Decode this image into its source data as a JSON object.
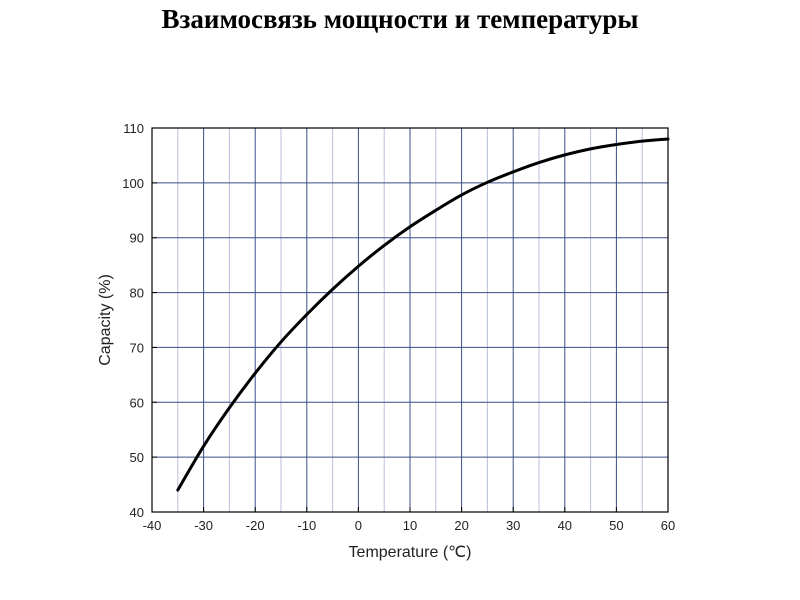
{
  "page": {
    "title": "Взаимосвязь мощности и температуры"
  },
  "chart_data": {
    "type": "line",
    "title": "Взаимосвязь мощности и температуры",
    "xlabel": "Temperature (℃)",
    "ylabel": "Capacity (%)",
    "xlim": [
      -40,
      60
    ],
    "ylim": [
      40,
      110
    ],
    "xticks": [
      -40,
      -30,
      -20,
      -10,
      0,
      10,
      20,
      30,
      40,
      50,
      60
    ],
    "yticks": [
      40,
      50,
      60,
      70,
      80,
      90,
      100,
      110
    ],
    "grid": true,
    "colors": {
      "line": "#000000",
      "major_grid": "#3a4f86",
      "minor_grid": "#b8c0dc"
    },
    "series": [
      {
        "x": [
          -35,
          -30,
          -25,
          -20,
          -15,
          -10,
          -5,
          0,
          5,
          10,
          15,
          20,
          25,
          30,
          35,
          40,
          45,
          50,
          55,
          60
        ],
        "y": [
          44,
          52,
          59,
          65.3,
          71,
          76,
          80.6,
          84.8,
          88.6,
          92,
          95,
          97.8,
          100.1,
          102,
          103.7,
          105.1,
          106.2,
          107,
          107.6,
          108
        ]
      }
    ]
  }
}
